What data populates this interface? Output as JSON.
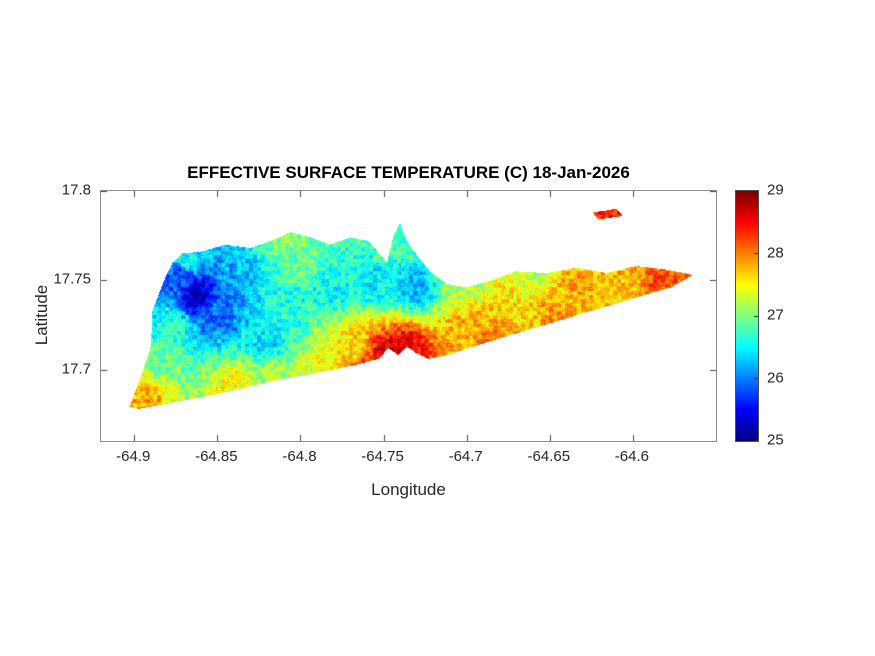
{
  "chart_data": {
    "type": "heatmap",
    "title": "EFFECTIVE SURFACE TEMPERATURE (C) 18-Jan-2026",
    "xlabel": "Longitude",
    "ylabel": "Latitude",
    "xlim": [
      -64.92,
      -64.55
    ],
    "ylim": [
      17.66,
      17.8
    ],
    "xticks": [
      -64.9,
      -64.85,
      -64.8,
      -64.75,
      -64.7,
      -64.65,
      -64.6
    ],
    "xtick_labels": [
      "-64.9",
      "-64.85",
      "-64.8",
      "-64.75",
      "-64.7",
      "-64.65",
      "-64.6"
    ],
    "yticks": [
      17.7,
      17.75,
      17.8
    ],
    "ytick_labels": [
      "17.7",
      "17.75",
      "17.8"
    ],
    "grid": false,
    "legend": false,
    "colorbar": {
      "min": 25,
      "max": 29,
      "ticks": [
        25,
        26,
        27,
        28,
        29
      ],
      "tick_labels": [
        "25",
        "26",
        "27",
        "28",
        "29"
      ],
      "colormap": "jet",
      "position": "right"
    },
    "island_outline": [
      [
        -64.903,
        17.679
      ],
      [
        -64.896,
        17.696
      ],
      [
        -64.89,
        17.713
      ],
      [
        -64.889,
        17.733
      ],
      [
        -64.882,
        17.75
      ],
      [
        -64.877,
        17.76
      ],
      [
        -64.871,
        17.765
      ],
      [
        -64.86,
        17.766
      ],
      [
        -64.845,
        17.77
      ],
      [
        -64.83,
        17.768
      ],
      [
        -64.818,
        17.772
      ],
      [
        -64.806,
        17.777
      ],
      [
        -64.794,
        17.774
      ],
      [
        -64.782,
        17.77
      ],
      [
        -64.77,
        17.774
      ],
      [
        -64.759,
        17.772
      ],
      [
        -64.748,
        17.76
      ],
      [
        -64.744,
        17.775
      ],
      [
        -64.74,
        17.782
      ],
      [
        -64.736,
        17.772
      ],
      [
        -64.73,
        17.764
      ],
      [
        -64.722,
        17.755
      ],
      [
        -64.712,
        17.748
      ],
      [
        -64.7,
        17.746
      ],
      [
        -64.685,
        17.75
      ],
      [
        -64.67,
        17.755
      ],
      [
        -64.652,
        17.754
      ],
      [
        -64.634,
        17.757
      ],
      [
        -64.616,
        17.754
      ],
      [
        -64.598,
        17.758
      ],
      [
        -64.58,
        17.756
      ],
      [
        -64.564,
        17.753
      ],
      [
        -64.577,
        17.746
      ],
      [
        -64.592,
        17.742
      ],
      [
        -64.61,
        17.737
      ],
      [
        -64.628,
        17.732
      ],
      [
        -64.646,
        17.727
      ],
      [
        -64.664,
        17.722
      ],
      [
        -64.682,
        17.717
      ],
      [
        -64.699,
        17.712
      ],
      [
        -64.712,
        17.708
      ],
      [
        -64.723,
        17.706
      ],
      [
        -64.73,
        17.709
      ],
      [
        -64.736,
        17.713
      ],
      [
        -64.741,
        17.708
      ],
      [
        -64.747,
        17.712
      ],
      [
        -64.753,
        17.706
      ],
      [
        -64.765,
        17.703
      ],
      [
        -64.78,
        17.7
      ],
      [
        -64.797,
        17.697
      ],
      [
        -64.815,
        17.694
      ],
      [
        -64.833,
        17.69
      ],
      [
        -64.851,
        17.686
      ],
      [
        -64.869,
        17.683
      ],
      [
        -64.885,
        17.68
      ],
      [
        -64.897,
        17.678
      ]
    ],
    "islet_outline": [
      [
        -64.624,
        17.788
      ],
      [
        -64.61,
        17.79
      ],
      [
        -64.606,
        17.786
      ],
      [
        -64.621,
        17.784
      ]
    ],
    "temperature_samples": [
      {
        "lon": -64.862,
        "lat": 17.742,
        "temp": 25.3
      },
      {
        "lon": -64.872,
        "lat": 17.752,
        "temp": 25.8
      },
      {
        "lon": -64.848,
        "lat": 17.732,
        "temp": 25.9
      },
      {
        "lon": -64.838,
        "lat": 17.752,
        "temp": 26.2
      },
      {
        "lon": -64.893,
        "lat": 17.684,
        "temp": 27.8
      },
      {
        "lon": -64.885,
        "lat": 17.706,
        "temp": 26.9
      },
      {
        "lon": -64.878,
        "lat": 17.725,
        "temp": 26.6
      },
      {
        "lon": -64.868,
        "lat": 17.762,
        "temp": 26.5
      },
      {
        "lon": -64.82,
        "lat": 17.715,
        "temp": 26.4
      },
      {
        "lon": -64.8,
        "lat": 17.76,
        "temp": 26.9
      },
      {
        "lon": -64.805,
        "lat": 17.735,
        "temp": 26.6
      },
      {
        "lon": -64.78,
        "lat": 17.745,
        "temp": 26.5
      },
      {
        "lon": -64.768,
        "lat": 17.712,
        "temp": 27.6
      },
      {
        "lon": -64.79,
        "lat": 17.7,
        "temp": 27.4
      },
      {
        "lon": -64.815,
        "lat": 17.696,
        "temp": 27.2
      },
      {
        "lon": -64.84,
        "lat": 17.69,
        "temp": 27.5
      },
      {
        "lon": -64.748,
        "lat": 17.708,
        "temp": 28.7
      },
      {
        "lon": -64.76,
        "lat": 17.703,
        "temp": 28.3
      },
      {
        "lon": -64.735,
        "lat": 17.712,
        "temp": 28.5
      },
      {
        "lon": -64.73,
        "lat": 17.745,
        "temp": 26.2
      },
      {
        "lon": -64.755,
        "lat": 17.748,
        "temp": 26.4
      },
      {
        "lon": -64.745,
        "lat": 17.772,
        "temp": 26.8
      },
      {
        "lon": -64.808,
        "lat": 17.774,
        "temp": 27.0
      },
      {
        "lon": -64.7,
        "lat": 17.722,
        "temp": 27.8
      },
      {
        "lon": -64.705,
        "lat": 17.75,
        "temp": 27.1
      },
      {
        "lon": -64.672,
        "lat": 17.738,
        "temp": 27.6
      },
      {
        "lon": -64.66,
        "lat": 17.754,
        "temp": 27.2
      },
      {
        "lon": -64.645,
        "lat": 17.73,
        "temp": 27.9
      },
      {
        "lon": -64.636,
        "lat": 17.748,
        "temp": 27.8
      },
      {
        "lon": -64.61,
        "lat": 17.752,
        "temp": 27.7
      },
      {
        "lon": -64.685,
        "lat": 17.716,
        "temp": 28.0
      },
      {
        "lon": -64.58,
        "lat": 17.752,
        "temp": 28.2
      },
      {
        "lon": -64.615,
        "lat": 17.787,
        "temp": 28.4
      }
    ]
  }
}
